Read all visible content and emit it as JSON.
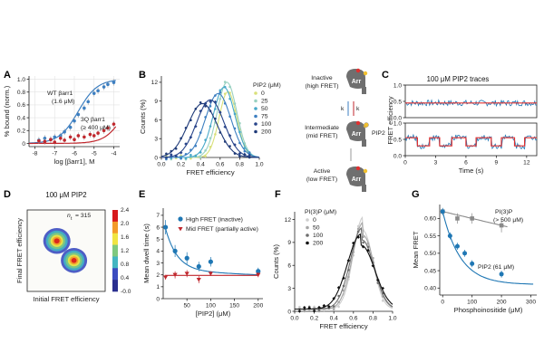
{
  "panel_labels": [
    "A",
    "B",
    "C",
    "D",
    "E",
    "F",
    "G"
  ],
  "schematic": {
    "states": [
      {
        "line1": "Inactive",
        "line2": "(high FRET)"
      },
      {
        "line1": "Intermediate",
        "line2": "(mid FRET)"
      },
      {
        "line1": "Active",
        "line2": "(low FRET)"
      }
    ],
    "arr_label": "Arr",
    "pip2_label": "PIP2",
    "kon_label": "k",
    "koff_label": "k"
  },
  "colors": {
    "wt": "#3d7fc1",
    "mut": "#c0272d",
    "dark_blue": "#1f3a78",
    "cyan": "#47a8c9",
    "yellow": "#d9e07a",
    "gray": "#8a8a8a",
    "trace_blue": "#1f77b4",
    "trace_red": "#e03030"
  },
  "chart_data": [
    {
      "panel": "A",
      "type": "scatter",
      "xlabel": "log [βarr1], M",
      "ylabel": "% bound (norm.)",
      "xlim": [
        -8.3,
        -3.7
      ],
      "ylim": [
        -0.05,
        1.05
      ],
      "xticks": [
        "-8",
        "-7",
        "-6",
        "-5",
        "-4"
      ],
      "yticks": [
        "0",
        "0.2",
        "0.4",
        "0.6",
        "0.8",
        "1.0"
      ],
      "series": [
        {
          "name": "WT βarr1",
          "note": "(1.6 μM)",
          "x": [
            -7.8,
            -7.5,
            -7.2,
            -7.0,
            -6.7,
            -6.5,
            -6.2,
            -6.0,
            -5.8,
            -5.5,
            -5.3,
            -5.0,
            -4.8,
            -4.5,
            -4.3,
            -4.0
          ],
          "y": [
            0.05,
            0.08,
            0.06,
            0.1,
            0.12,
            0.18,
            0.25,
            0.35,
            0.45,
            0.55,
            0.65,
            0.78,
            0.82,
            0.88,
            0.92,
            0.95
          ],
          "fit_ec50_log": -5.8
        },
        {
          "name": "3Q βarr1",
          "note": "(≥ 400 μM)",
          "x": [
            -7.8,
            -7.5,
            -7.2,
            -7.0,
            -6.7,
            -6.5,
            -6.2,
            -6.0,
            -5.8,
            -5.5,
            -5.2,
            -5.0,
            -4.8,
            -4.5,
            -4.3,
            -4.0
          ],
          "y": [
            0.04,
            0.03,
            0.06,
            0.02,
            0.08,
            0.05,
            0.1,
            0.06,
            0.12,
            0.1,
            0.14,
            0.12,
            0.16,
            0.2,
            0.24,
            0.3
          ],
          "fit_ec50_log": -3.4
        }
      ]
    },
    {
      "panel": "B",
      "type": "line",
      "xlabel": "FRET efficiency",
      "ylabel": "Counts (%)",
      "xlim": [
        0,
        1
      ],
      "ylim": [
        0,
        13
      ],
      "xticks": [
        "0.0",
        "0.2",
        "0.4",
        "0.6",
        "0.8",
        "1.0"
      ],
      "yticks": [
        "0",
        "3",
        "6",
        "9",
        "12"
      ],
      "legend_title": "PIP2 (μM)",
      "series": [
        {
          "name": "0",
          "peak": 0.68,
          "height": 10.5,
          "width": 0.09
        },
        {
          "name": "25",
          "peak": 0.67,
          "height": 12.0,
          "width": 0.1
        },
        {
          "name": "50",
          "peak": 0.64,
          "height": 11.2,
          "width": 0.11
        },
        {
          "name": "75",
          "peak": 0.58,
          "height": 10.2,
          "width": 0.13
        },
        {
          "name": "100",
          "peak": 0.5,
          "height": 9.2,
          "width": 0.14
        },
        {
          "name": "200",
          "peak": 0.42,
          "height": 8.6,
          "width": 0.15
        }
      ]
    },
    {
      "panel": "C",
      "type": "line",
      "title": "100 μM PIP2 traces",
      "xlabel": "Time (s)",
      "ylabel": "FRET efficiency",
      "xlim": [
        0,
        13
      ],
      "ylim": [
        0,
        1
      ],
      "xticks": [
        "0",
        "3",
        "6",
        "9",
        "12"
      ],
      "yticks": [
        "0.0",
        "0.5",
        "1.0"
      ],
      "traces": [
        {
          "name": "trace 1",
          "states": [
            [
              0,
              13,
              0.45
            ]
          ]
        },
        {
          "name": "trace 2",
          "states": [
            [
              0,
              1.2,
              0.55
            ],
            [
              1.2,
              2.4,
              0.3
            ],
            [
              2.4,
              3.4,
              0.55
            ],
            [
              3.4,
              4.6,
              0.3
            ],
            [
              4.6,
              6.0,
              0.55
            ],
            [
              6.0,
              7.0,
              0.3
            ],
            [
              7.0,
              8.5,
              0.55
            ],
            [
              8.5,
              9.5,
              0.3
            ],
            [
              9.5,
              10.8,
              0.55
            ],
            [
              10.8,
              11.8,
              0.3
            ],
            [
              11.8,
              13,
              0.55
            ]
          ]
        }
      ]
    },
    {
      "panel": "D",
      "type": "heatmap",
      "title": "100 μM PIP2",
      "annotation": "n",
      "annotation_sub": "t",
      "annotation_value": "= 315",
      "xlabel": "Initial FRET efficiency",
      "ylabel": "Final FRET efficiency",
      "xlim": [
        0,
        1
      ],
      "ylim": [
        0,
        1
      ],
      "colorbar_ticks": [
        "-0.0",
        "0.4",
        "0.8",
        "1.2",
        "1.6",
        "2.0",
        "2.4"
      ],
      "blobs": [
        {
          "x": 0.38,
          "y": 0.62,
          "peak": 2.4
        },
        {
          "x": 0.6,
          "y": 0.38,
          "peak": 2.0
        }
      ]
    },
    {
      "panel": "E",
      "type": "scatter",
      "xlabel": "[PIP2] (μM)",
      "ylabel": "Mean dwell time (s)",
      "xlim": [
        0,
        210
      ],
      "ylim": [
        0,
        7.6
      ],
      "xticks": [
        "50",
        "100",
        "150",
        "200"
      ],
      "yticks": [
        "0",
        "1",
        "2",
        "3",
        "4",
        "5",
        "6",
        "7"
      ],
      "series": [
        {
          "name": "High FRET (inactive)",
          "x": [
            5,
            25,
            50,
            75,
            100,
            200
          ],
          "y": [
            6.0,
            4.0,
            3.4,
            2.7,
            3.1,
            2.3
          ],
          "err": [
            0.6,
            0.5,
            0.5,
            0.4,
            0.4,
            0.3
          ]
        },
        {
          "name": "Mid FRET (partially active)",
          "x": [
            5,
            25,
            50,
            75,
            100,
            200
          ],
          "y": [
            1.8,
            2.0,
            2.1,
            1.6,
            2.1,
            2.0
          ],
          "err": [
            0.2,
            0.3,
            0.3,
            0.3,
            0.2,
            0.2
          ]
        }
      ]
    },
    {
      "panel": "F",
      "type": "line",
      "xlabel": "FRET efficiency",
      "ylabel": "Counts (%)",
      "xlim": [
        0,
        1
      ],
      "ylim": [
        0,
        13
      ],
      "xticks": [
        "0.0",
        "0.2",
        "0.4",
        "0.6",
        "0.8",
        "1.0"
      ],
      "yticks": [
        "0",
        "3",
        "6",
        "9",
        "12"
      ],
      "legend_title": "PI(3)P (μM)",
      "series": [
        {
          "name": "0",
          "peak": 0.7,
          "height": 12.0,
          "width": 0.1
        },
        {
          "name": "50",
          "peak": 0.7,
          "height": 11.3,
          "width": 0.11
        },
        {
          "name": "100",
          "peak": 0.69,
          "height": 10.6,
          "width": 0.12
        },
        {
          "name": "200",
          "peak": 0.68,
          "height": 9.8,
          "width": 0.14
        }
      ]
    },
    {
      "panel": "G",
      "type": "scatter",
      "xlabel": "Phosphoinositide (μM)",
      "ylabel": "Mean FRET",
      "xlim": [
        -10,
        320
      ],
      "ylim": [
        0.38,
        0.64
      ],
      "xticks": [
        "0",
        "100",
        "200",
        "300"
      ],
      "yticks": [
        "0.40",
        "0.45",
        "0.50",
        "0.55",
        "0.60"
      ],
      "series": [
        {
          "name": "PI(3)P",
          "note": "(> 500 μM)",
          "x": [
            0,
            50,
            100,
            200
          ],
          "y": [
            0.62,
            0.6,
            0.6,
            0.58
          ],
          "err": [
            0.01,
            0.015,
            0.015,
            0.02
          ]
        },
        {
          "name": "PIP2",
          "note": "(61 μM)",
          "x": [
            0,
            25,
            50,
            75,
            100,
            200
          ],
          "y": [
            0.62,
            0.55,
            0.52,
            0.5,
            0.47,
            0.44
          ],
          "err": [
            0.01,
            0.01,
            0.01,
            0.01,
            0.01,
            0.01
          ]
        }
      ]
    }
  ]
}
